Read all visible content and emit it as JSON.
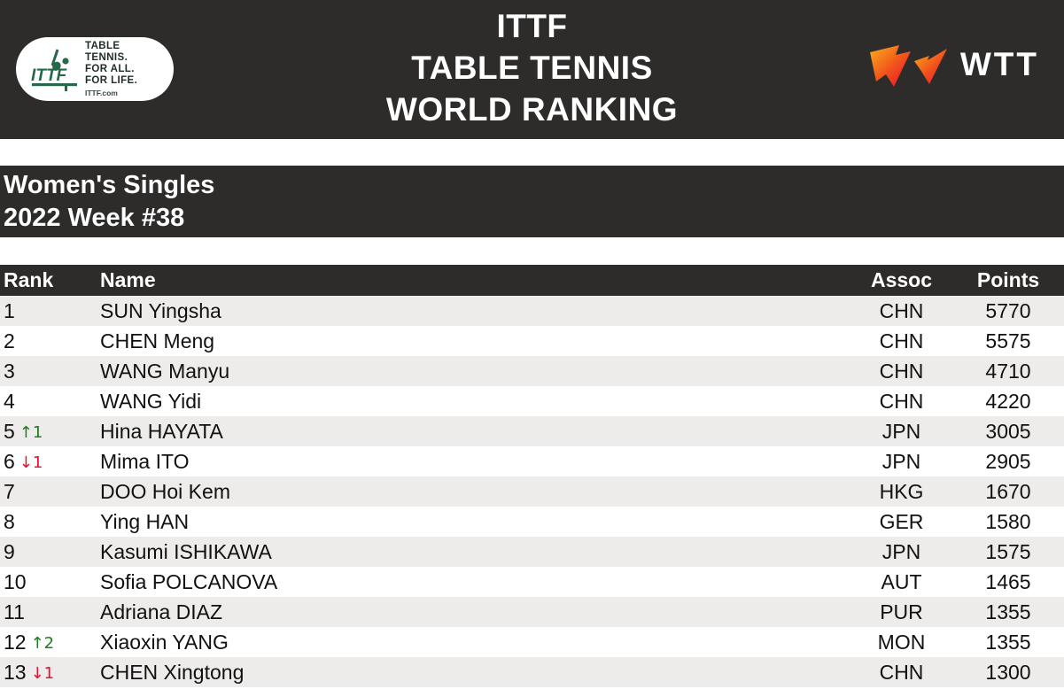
{
  "header": {
    "title_lines": [
      "ITTF",
      "TABLE TENNIS",
      "WORLD RANKING"
    ],
    "ittf_logo": {
      "emblem_text": "ITTF",
      "tagline_lines": [
        "TABLE TENNIS.",
        "FOR ALL.",
        "FOR LIFE."
      ],
      "site": "ITTF.com"
    },
    "wtt_logo": {
      "text": "WTT"
    }
  },
  "subtitle": {
    "event": "Women's Singles",
    "week": "2022 Week #38"
  },
  "table": {
    "columns": [
      "Rank",
      "Name",
      "Assoc",
      "Points"
    ],
    "rows": [
      {
        "rank": "1",
        "move": null,
        "name": "SUN Yingsha",
        "assoc": "CHN",
        "points": "5770"
      },
      {
        "rank": "2",
        "move": null,
        "name": "CHEN Meng",
        "assoc": "CHN",
        "points": "5575"
      },
      {
        "rank": "3",
        "move": null,
        "name": "WANG Manyu",
        "assoc": "CHN",
        "points": "4710"
      },
      {
        "rank": "4",
        "move": null,
        "name": "WANG Yidi",
        "assoc": "CHN",
        "points": "4220"
      },
      {
        "rank": "5",
        "move": {
          "dir": "up",
          "delta": "1"
        },
        "name": "Hina HAYATA",
        "assoc": "JPN",
        "points": "3005"
      },
      {
        "rank": "6",
        "move": {
          "dir": "down",
          "delta": "1"
        },
        "name": "Mima ITO",
        "assoc": "JPN",
        "points": "2905"
      },
      {
        "rank": "7",
        "move": null,
        "name": "DOO Hoi Kem",
        "assoc": "HKG",
        "points": "1670"
      },
      {
        "rank": "8",
        "move": null,
        "name": "Ying HAN",
        "assoc": "GER",
        "points": "1580"
      },
      {
        "rank": "9",
        "move": null,
        "name": "Kasumi ISHIKAWA",
        "assoc": "JPN",
        "points": "1575"
      },
      {
        "rank": "10",
        "move": null,
        "name": "Sofia POLCANOVA",
        "assoc": "AUT",
        "points": "1465"
      },
      {
        "rank": "11",
        "move": null,
        "name": "Adriana DIAZ",
        "assoc": "PUR",
        "points": "1355"
      },
      {
        "rank": "12",
        "move": {
          "dir": "up",
          "delta": "2"
        },
        "name": "Xiaoxin YANG",
        "assoc": "MON",
        "points": "1355"
      },
      {
        "rank": "13",
        "move": {
          "dir": "down",
          "delta": "1"
        },
        "name": "CHEN Xingtong",
        "assoc": "CHN",
        "points": "1300"
      }
    ]
  },
  "icons": {
    "arrow_up": "↑",
    "arrow_down": "↓"
  },
  "colors": {
    "bar_bg": "#2D2C2B",
    "row_alt_bg": "#EDECEB",
    "up_green": "#1E7B1E",
    "down_red": "#E8112D",
    "ittf_green": "#26694A",
    "wtt_orange": "#F9B021",
    "wtt_red": "#E8112D"
  }
}
